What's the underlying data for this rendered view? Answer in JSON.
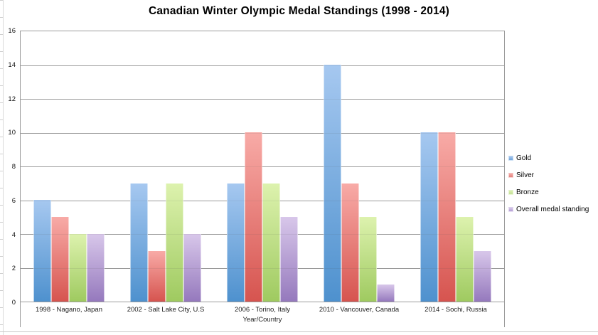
{
  "chart_data": {
    "type": "bar",
    "title": "Canadian Winter Olympic Medal Standings (1998 - 2014)",
    "xlabel": "Year/Country",
    "ylabel": "",
    "ylim": [
      0,
      16
    ],
    "yticks": [
      0,
      2,
      4,
      6,
      8,
      10,
      12,
      14,
      16
    ],
    "grid": true,
    "legend_position": "right",
    "categories": [
      "1998 - Nagano, Japan",
      "2002 - Salt Lake City, U.S",
      "2006 - Torino, Italy",
      "2010 - Vancouver, Canada",
      "2014 - Sochi, Russia"
    ],
    "series": [
      {
        "name": "Gold",
        "values": [
          6,
          7,
          7,
          14,
          10
        ],
        "color_top": "#a6c8f0",
        "color_bottom": "#4e91ce",
        "legend_color": "#6fa3da"
      },
      {
        "name": "Silver",
        "values": [
          5,
          3,
          10,
          7,
          10
        ],
        "color_top": "#f8aba7",
        "color_bottom": "#d6544f",
        "legend_color": "#df817d"
      },
      {
        "name": "Bronze",
        "values": [
          4,
          7,
          7,
          5,
          5
        ],
        "color_top": "#ddf2ae",
        "color_bottom": "#9fca60",
        "legend_color": "#c3df9b"
      },
      {
        "name": "Overall medal standing",
        "values": [
          4,
          4,
          5,
          1,
          3
        ],
        "color_top": "#d8c7ea",
        "color_bottom": "#9579bd",
        "legend_color": "#b29fd3"
      }
    ],
    "style": {
      "gridline_color": "#a3a3a3",
      "plot_border_color": "#9b9b9b",
      "text_color": "#111111",
      "background": "#ffffff"
    }
  }
}
